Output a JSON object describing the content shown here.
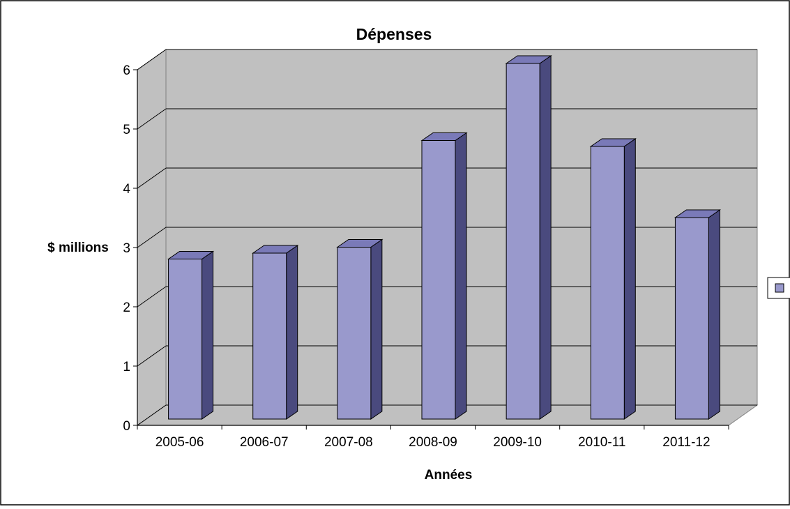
{
  "chart_data": {
    "type": "bar",
    "title": "Dépenses",
    "xlabel": "Années",
    "ylabel": "$ millions",
    "categories": [
      "2005-06",
      "2006-07",
      "2007-08",
      "2008-09",
      "2009-10",
      "2010-11",
      "2011-12"
    ],
    "values": [
      2.7,
      2.8,
      2.9,
      4.7,
      6.0,
      4.6,
      3.4
    ],
    "ylim": [
      0,
      6
    ],
    "yticks": [
      "0",
      "1",
      "2",
      "3",
      "4",
      "5",
      "6"
    ],
    "grid": true,
    "legend_position": "right",
    "colors": {
      "bar_front": "#9999cc",
      "bar_side": "#4a4a7e",
      "bar_top": "#7a7ab8",
      "wall": "#c0c0c0",
      "floor": "#c0c0c0",
      "grid": "#000000"
    }
  }
}
